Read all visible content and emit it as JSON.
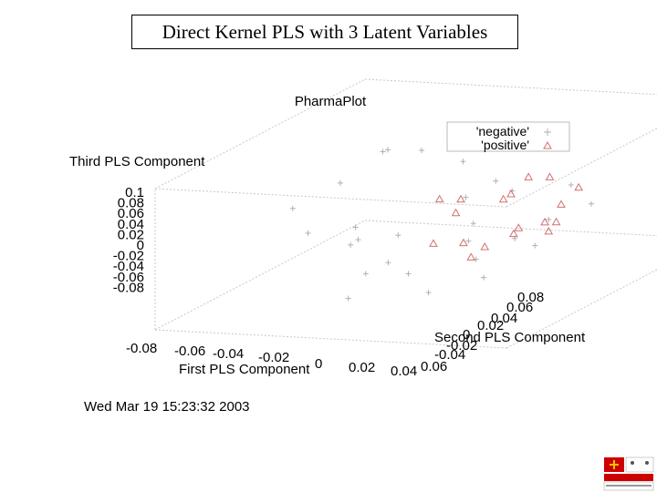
{
  "slide": {
    "title": "Direct Kernel PLS with 3 Latent Variables",
    "timestamp": "Wed Mar 19 15:23:32 2003"
  },
  "chart_data": {
    "type": "scatter",
    "title": "PharmaPlot",
    "projection": "3d",
    "x_axis": {
      "label": "First PLS Component",
      "ticks": [
        "-0.08",
        "-0.06",
        "-0.04",
        "-0.02",
        "0",
        "0.02",
        "0.04",
        "0.06"
      ]
    },
    "y_axis": {
      "label": "Second PLS Component",
      "ticks": [
        "0.08",
        "0.06",
        "0.04",
        "0.02",
        "0",
        "-0.02",
        "-0.04"
      ]
    },
    "z_axis": {
      "label": "Third PLS Component",
      "ticks": [
        "0.1",
        "0.08",
        "0.06",
        "0.04",
        "0.02",
        "0",
        "-0.02",
        "-0.04",
        "-0.06",
        "-0.08"
      ]
    },
    "legend": {
      "placement": "top-right"
    },
    "series": [
      {
        "name": "'negative'",
        "marker": "plus",
        "color": "#b0b0b0",
        "points": [
          [
            -0.05,
            0.05,
            0.05
          ],
          [
            -0.045,
            0.04,
            0.06
          ],
          [
            -0.04,
            0.055,
            0.045
          ],
          [
            -0.055,
            0.03,
            0.03
          ],
          [
            -0.035,
            0.01,
            0.0
          ],
          [
            -0.03,
            0.0,
            -0.01
          ],
          [
            -0.02,
            -0.01,
            0.01
          ],
          [
            -0.025,
            0.02,
            -0.02
          ],
          [
            -0.015,
            0.0,
            -0.03
          ],
          [
            -0.01,
            -0.02,
            -0.02
          ],
          [
            0.0,
            -0.01,
            -0.03
          ],
          [
            0.005,
            0.02,
            0.0
          ],
          [
            0.01,
            0.01,
            -0.01
          ],
          [
            -0.005,
            0.03,
            0.02
          ],
          [
            0.015,
            -0.02,
            -0.04
          ],
          [
            0.02,
            0.0,
            -0.02
          ],
          [
            0.025,
            0.015,
            -0.01
          ],
          [
            0.03,
            -0.01,
            -0.03
          ],
          [
            -0.04,
            -0.01,
            0.015
          ],
          [
            -0.06,
            0.01,
            0.02
          ],
          [
            0.035,
            0.02,
            0.01
          ],
          [
            0.04,
            0.005,
            -0.005
          ],
          [
            0.0,
            0.04,
            0.03
          ],
          [
            0.01,
            0.035,
            0.025
          ],
          [
            -0.02,
            0.05,
            0.04
          ],
          [
            0.045,
            0.03,
            0.02
          ],
          [
            0.03,
            0.04,
            0.03
          ],
          [
            -0.01,
            -0.03,
            -0.04
          ]
        ]
      },
      {
        "name": "'positive'",
        "marker": "triangle",
        "color": "#d07070",
        "points": [
          [
            0.0,
            0.02,
            0.03
          ],
          [
            0.01,
            0.03,
            0.02
          ],
          [
            0.02,
            0.02,
            0.04
          ],
          [
            0.03,
            0.01,
            0.01
          ],
          [
            0.015,
            0.0,
            0.0
          ],
          [
            0.025,
            -0.01,
            -0.005
          ],
          [
            0.035,
            0.0,
            0.015
          ],
          [
            0.04,
            0.02,
            0.03
          ],
          [
            0.005,
            0.01,
            0.025
          ],
          [
            0.02,
            0.03,
            0.05
          ],
          [
            -0.005,
            0.015,
            0.035
          ],
          [
            0.03,
            0.025,
            0.0
          ],
          [
            0.045,
            0.01,
            0.02
          ],
          [
            0.01,
            -0.01,
            0.01
          ],
          [
            0.025,
            0.035,
            0.045
          ],
          [
            0.04,
            0.03,
            0.04
          ],
          [
            0.02,
            0.005,
            -0.01
          ],
          [
            0.035,
            0.02,
            -0.005
          ]
        ]
      }
    ]
  }
}
